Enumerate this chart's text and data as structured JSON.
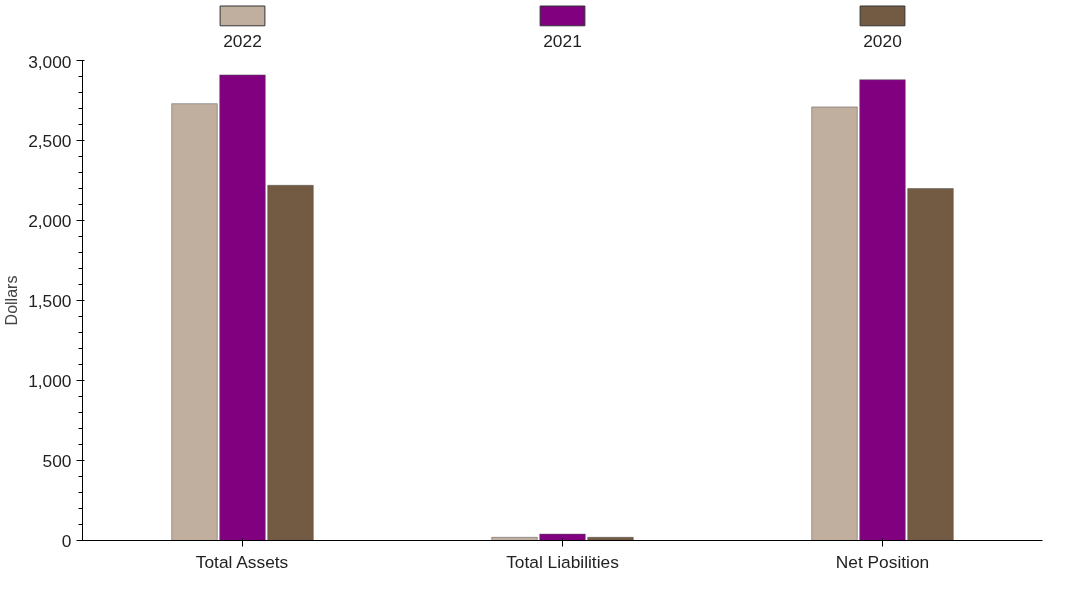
{
  "chart_data": {
    "type": "bar",
    "ylabel": "Dollars",
    "categories": [
      "Total Assets",
      "Total Liabilities",
      "Net Position"
    ],
    "series": [
      {
        "name": "2022",
        "color": "#c0ae9e",
        "values": [
          2730,
          20,
          2710
        ]
      },
      {
        "name": "2021",
        "color": "#800080",
        "values": [
          2910,
          40,
          2880
        ]
      },
      {
        "name": "2020",
        "color": "#735a42",
        "values": [
          2220,
          20,
          2200
        ]
      }
    ],
    "ylim": [
      0,
      3000
    ],
    "yticks": [
      0,
      500,
      {
        "value": 1000,
        "label": "1,000"
      },
      {
        "value": 1500,
        "label": "1,500"
      },
      {
        "value": 2000,
        "label": "2,000"
      },
      {
        "value": 2500,
        "label": "2,500"
      },
      {
        "value": 3000,
        "label": "3,000"
      }
    ],
    "grid": false,
    "legend": "top"
  }
}
